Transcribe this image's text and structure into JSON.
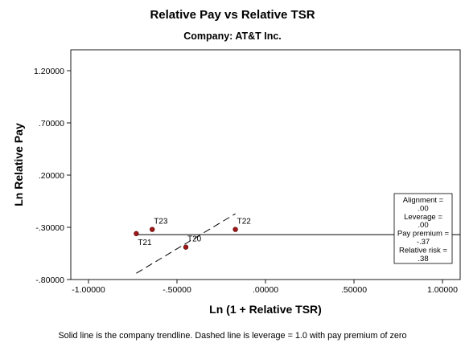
{
  "chart_data": {
    "type": "scatter",
    "title": "Relative Pay vs Relative TSR",
    "subtitle": "Company: AT&T Inc.",
    "xlabel": "Ln (1 + Relative TSR)",
    "ylabel": "Ln Relative Pay",
    "xlim": [
      -1.1,
      1.1
    ],
    "ylim": [
      -0.8,
      1.4
    ],
    "x_ticks": [
      {
        "value": -1.0,
        "label": "-1.00000"
      },
      {
        "value": -0.5,
        "label": "-.50000"
      },
      {
        "value": 0.0,
        "label": ".00000"
      },
      {
        "value": 0.5,
        "label": ".50000"
      },
      {
        "value": 1.0,
        "label": "1.00000"
      }
    ],
    "y_ticks": [
      {
        "value": 1.2,
        "label": "1.20000"
      },
      {
        "value": 0.7,
        "label": ".70000"
      },
      {
        "value": 0.2,
        "label": ".20000"
      },
      {
        "value": -0.3,
        "label": "-.30000"
      },
      {
        "value": -0.8,
        "label": "-.80000"
      }
    ],
    "grid": false,
    "points": [
      {
        "label": "T21",
        "x": -0.73,
        "y": -0.36
      },
      {
        "label": "T23",
        "x": -0.64,
        "y": -0.32
      },
      {
        "label": "T20",
        "x": -0.45,
        "y": -0.49
      },
      {
        "label": "T22",
        "x": -0.17,
        "y": -0.32
      }
    ],
    "trendline": {
      "x": [
        -0.73,
        1.1
      ],
      "y": [
        -0.37,
        -0.37
      ]
    },
    "leverage_line": {
      "x": [
        -0.73,
        -0.17
      ],
      "y": [
        -0.74,
        -0.17
      ]
    },
    "legend_box": {
      "placement": "right",
      "lines": [
        "Alignment =",
        ".00",
        "Leverage =",
        ".00",
        "Pay premium =",
        "-.37",
        "Relative risk =",
        ".38"
      ]
    },
    "footnote": "Solid line is the company trendline.  Dashed line is leverage = 1.0 with pay premium of zero",
    "colors": {
      "point_fill": "#a01818",
      "point_stroke": "#5a0000",
      "line": "#000000"
    }
  }
}
